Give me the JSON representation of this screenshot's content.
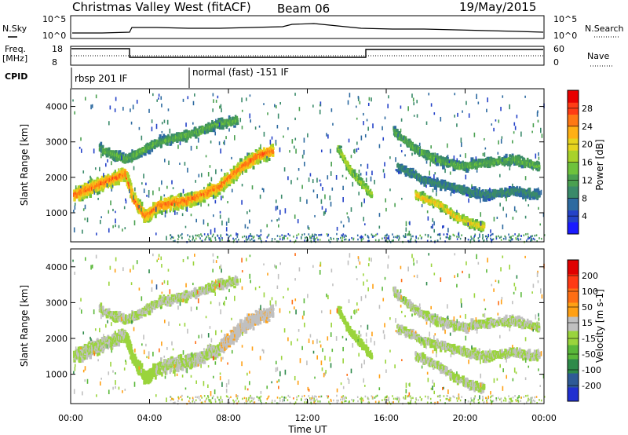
{
  "header": {
    "station": "Christmas Valley West (fitACF)",
    "beam": "Beam 06",
    "date": "19/May/2015"
  },
  "param_panel": {
    "nsky_label": "N.Sky",
    "nsky_ticks": [
      "10^5",
      "10^0"
    ],
    "nsearch_label": "N.Search",
    "nsearch_ticks": [
      "10^5",
      "10^0"
    ],
    "freq_label": "Freq.",
    "freq_unit": "[MHz]",
    "freq_ticks": [
      "18",
      "8"
    ],
    "nave_label": "Nave",
    "nave_ticks": [
      "60",
      "0"
    ],
    "cpid_label": "CPID",
    "cpid_segments": [
      {
        "label": "rbsp 201 IF",
        "start_hour": 0
      },
      {
        "label": "normal (fast) -151 IF",
        "start_hour": 6.0
      }
    ]
  },
  "chart_data": [
    {
      "type": "heatmap",
      "name": "power",
      "xlabel": "Time UT",
      "ylabel": "Slant Range [km]",
      "xlim": [
        0,
        24
      ],
      "ylim": [
        180,
        4500
      ],
      "x_ticks": [
        "00:00",
        "04:00",
        "08:00",
        "12:00",
        "16:00",
        "20:00",
        "00:00"
      ],
      "y_ticks": [
        1000,
        2000,
        3000,
        4000
      ],
      "colorbar": {
        "label": "Power [dB]",
        "ticks": [
          4,
          8,
          12,
          16,
          20,
          24,
          28
        ],
        "range": [
          0,
          32
        ],
        "colors": [
          "#1a1aff",
          "#2442c8",
          "#2d6aa0",
          "#3a8a6a",
          "#4aa050",
          "#6ec23c",
          "#a8d22a",
          "#e6d41e",
          "#ffb014",
          "#ff7814",
          "#ff3c14",
          "#e80000"
        ]
      },
      "features": [
        {
          "desc": "main echo band",
          "points": [
            [
              0.2,
              1500
            ],
            [
              1.5,
              1800
            ],
            [
              2.8,
              2100
            ],
            [
              3.2,
              1400
            ],
            [
              3.8,
              900
            ],
            [
              4.5,
              1200
            ],
            [
              6.0,
              1350
            ],
            [
              7.5,
              1700
            ],
            [
              8.5,
              2200
            ],
            [
              9.5,
              2600
            ],
            [
              10.3,
              2750
            ]
          ],
          "power": 24
        },
        {
          "desc": "upper echo band",
          "points": [
            [
              1.5,
              2800
            ],
            [
              2.8,
              2500
            ],
            [
              4.5,
              3000
            ],
            [
              6.0,
              3200
            ],
            [
              7.5,
              3500
            ],
            [
              8.5,
              3600
            ]
          ],
          "power": 12
        },
        {
          "desc": "morning patch",
          "points": [
            [
              13.6,
              2800
            ],
            [
              14.2,
              2200
            ],
            [
              14.8,
              1800
            ],
            [
              15.3,
              1500
            ]
          ],
          "power": 16
        },
        {
          "desc": "evening band 1",
          "points": [
            [
              16.4,
              3300
            ],
            [
              17.5,
              2800
            ],
            [
              18.5,
              2500
            ],
            [
              19.8,
              2300
            ],
            [
              21.0,
              2400
            ],
            [
              22.5,
              2500
            ],
            [
              23.8,
              2300
            ]
          ],
          "power": 12
        },
        {
          "desc": "evening band 2",
          "points": [
            [
              16.6,
              2300
            ],
            [
              18.0,
              1900
            ],
            [
              19.5,
              1700
            ],
            [
              21.0,
              1500
            ],
            [
              22.5,
              1600
            ],
            [
              23.8,
              1500
            ]
          ],
          "power": 8
        },
        {
          "desc": "evening band 3",
          "points": [
            [
              17.5,
              1500
            ],
            [
              18.8,
              1200
            ],
            [
              19.5,
              900
            ],
            [
              20.3,
              700
            ],
            [
              21.0,
              600
            ]
          ],
          "power": 20
        }
      ]
    },
    {
      "type": "heatmap",
      "name": "velocity",
      "xlabel": "Time UT",
      "ylabel": "Slant Range [km]",
      "xlim": [
        0,
        24
      ],
      "ylim": [
        180,
        4500
      ],
      "x_ticks": [
        "00:00",
        "04:00",
        "08:00",
        "12:00",
        "16:00",
        "20:00",
        "00:00"
      ],
      "y_ticks": [
        1000,
        2000,
        3000,
        4000
      ],
      "colorbar": {
        "label": "Velocity [m s-1]",
        "ticks": [
          "200",
          "100",
          "50",
          "15",
          "-15",
          "-50",
          "-100",
          "-200"
        ],
        "range": [
          -250,
          250
        ],
        "colors": [
          "#e00000",
          "#ff3a14",
          "#ff6e14",
          "#ffa014",
          "#c0c0c0",
          "#9ad43c",
          "#5ab83a",
          "#2e8a4a",
          "#2e5a96",
          "#2030d0"
        ]
      }
    }
  ]
}
